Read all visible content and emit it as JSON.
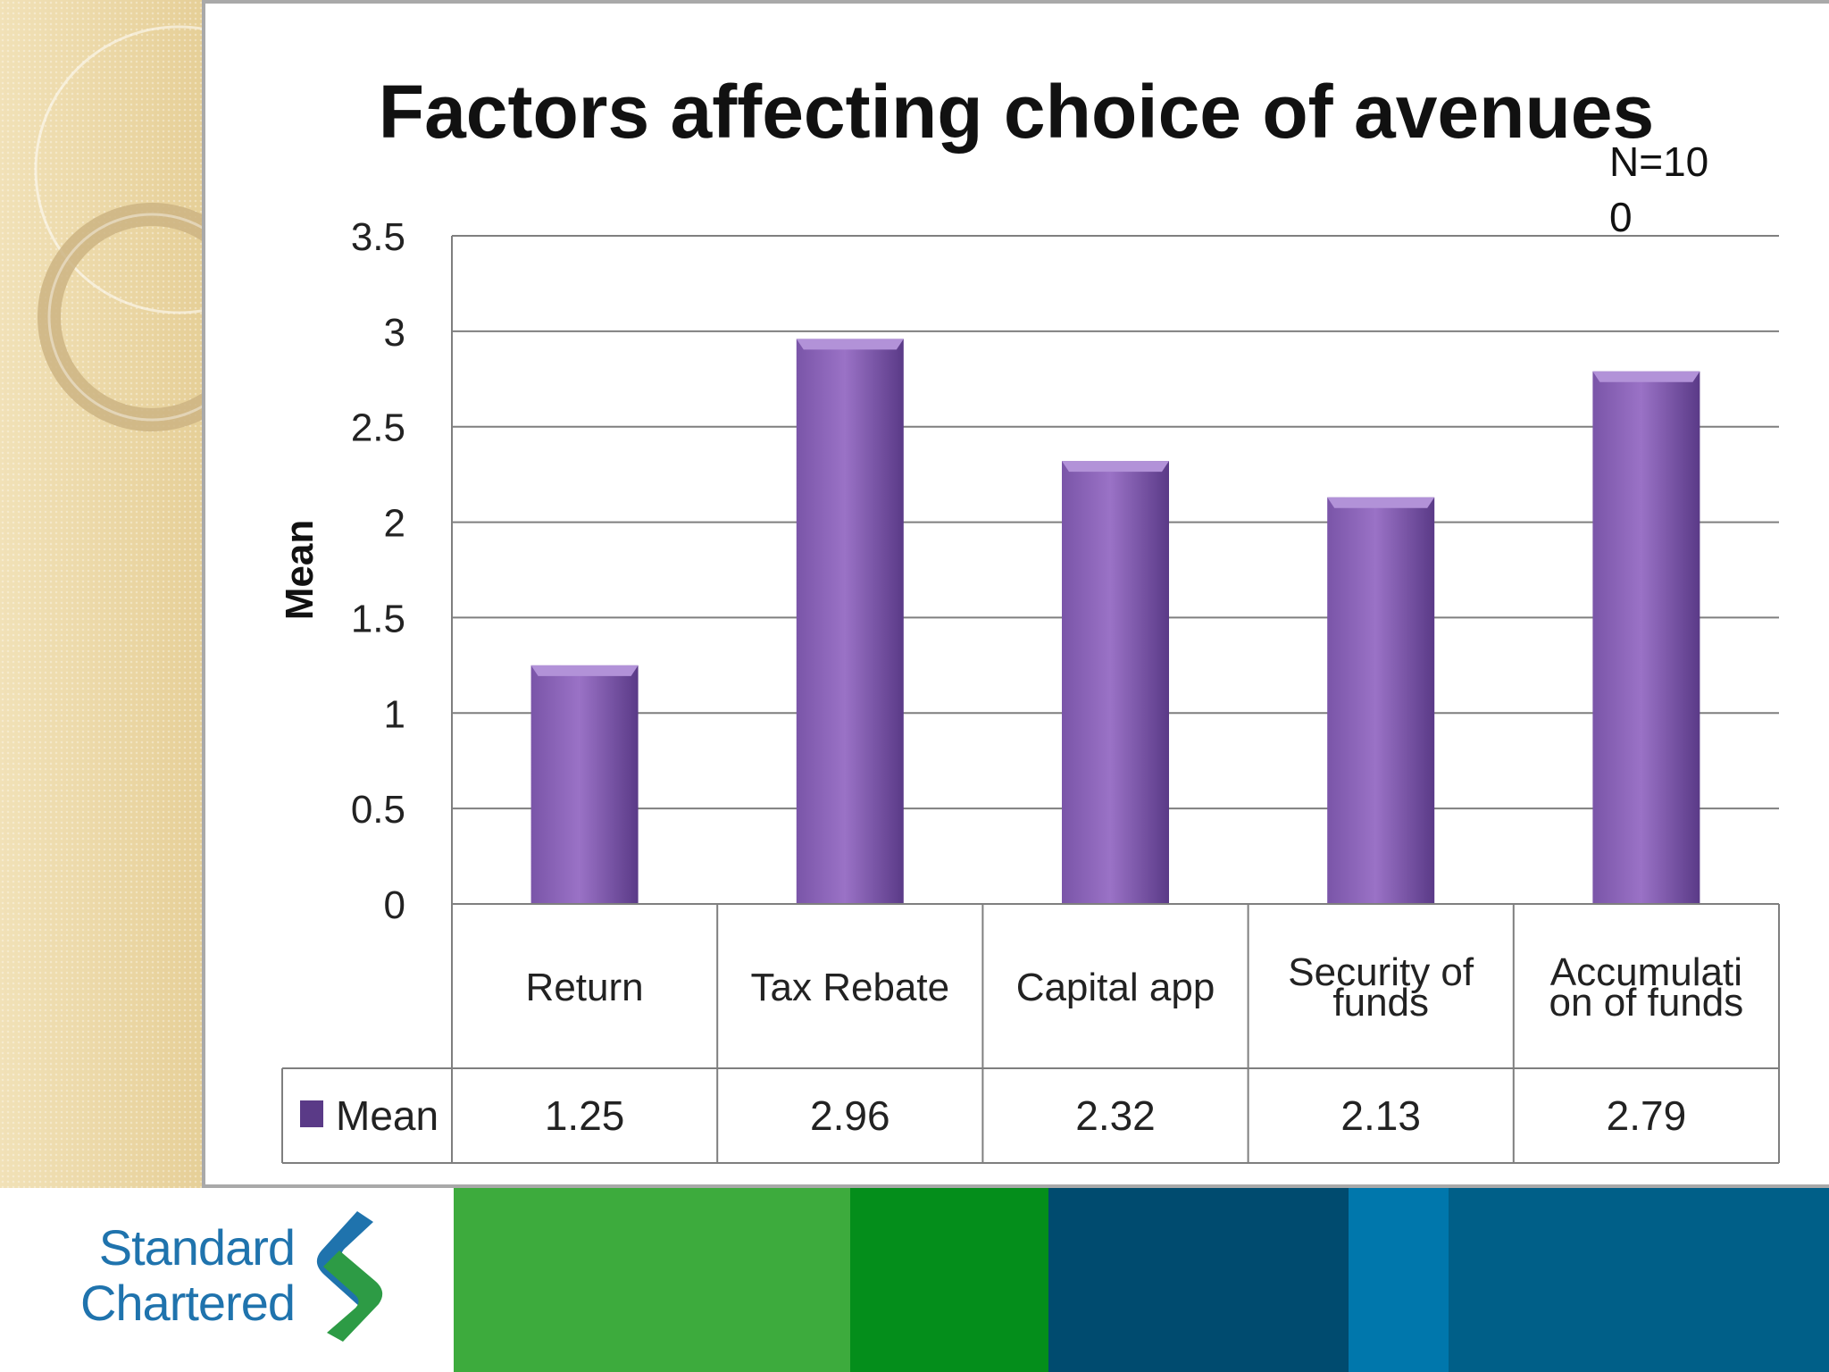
{
  "chart_data": {
    "type": "bar",
    "title": "Factors affecting choice of avenues",
    "annotation_lines": [
      "N=10",
      "0"
    ],
    "ylabel": "Mean",
    "xlabel": "",
    "ylim": [
      0,
      3.5
    ],
    "yticks": [
      "0",
      "0.5",
      "1",
      "1.5",
      "2",
      "2.5",
      "3",
      "3.5"
    ],
    "ytick_values": [
      0,
      0.5,
      1,
      1.5,
      2,
      2.5,
      3,
      3.5
    ],
    "categories": [
      "Return",
      "Tax Rebate",
      "Capital app",
      "Security of funds",
      "Accumulation of funds"
    ],
    "category_label_lines": [
      [
        "Return"
      ],
      [
        "Tax Rebate"
      ],
      [
        "Capital app"
      ],
      [
        "Security of",
        "funds"
      ],
      [
        "Accumulati",
        "on of funds"
      ]
    ],
    "series": [
      {
        "name": "Mean",
        "values": [
          1.25,
          2.96,
          2.32,
          2.13,
          2.79
        ],
        "value_labels": [
          "1.25",
          "2.96",
          "2.32",
          "2.13",
          "2.79"
        ]
      }
    ],
    "grid": true,
    "legend": "data-table"
  },
  "colors": {
    "bar_light": "#9a72c6",
    "bar_mid": "#7a55a8",
    "bar_dark": "#5a3a87",
    "bar_top": "#b292d8",
    "gridline": "#7f7f7f"
  },
  "footer": {
    "logo_line1": "Standard",
    "logo_line2": "Chartered",
    "logo_icon": "standard-chartered-icon",
    "band_colors": [
      "#3dab3d",
      "#048e1b",
      "#004b6f",
      "#0077ac",
      "#005f88"
    ]
  }
}
